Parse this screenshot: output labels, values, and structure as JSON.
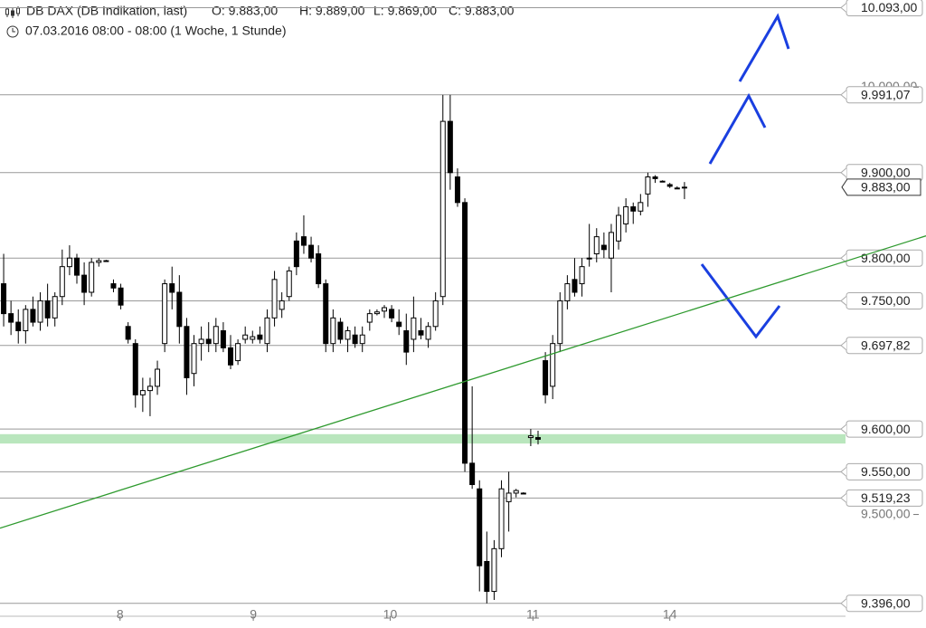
{
  "header": {
    "title": "DB DAX (DB Indikation, last)",
    "open": "O: 9.883,00",
    "high": "H: 9.889,00",
    "low": "L: 9.869,00",
    "close": "C: 9.883,00",
    "period": "07.03.2016 08:00 - 08:00 (1 Woche, 1 Stunde)"
  },
  "chart_data": {
    "type": "candlestick",
    "x": [
      0,
      1,
      2,
      3,
      4,
      5,
      6,
      7,
      8,
      9,
      10,
      11,
      12,
      13,
      14,
      15,
      16,
      17,
      18,
      19,
      20,
      21,
      22,
      23,
      24,
      25,
      26,
      27,
      28,
      29,
      30,
      31,
      32,
      33,
      34,
      35,
      36,
      37,
      38,
      39,
      40,
      41,
      42,
      43,
      44,
      45,
      46,
      47,
      48,
      49,
      50,
      51,
      52,
      53,
      54,
      55,
      56,
      57,
      58,
      59,
      60,
      61,
      62,
      63,
      64,
      65,
      66,
      67,
      68,
      69,
      70,
      71,
      72,
      73,
      74,
      75,
      76,
      77,
      78,
      79,
      80,
      81,
      82,
      83,
      84,
      85,
      86,
      87,
      88,
      89,
      90,
      91,
      92,
      93
    ],
    "open": [
      9770,
      9735,
      9725,
      9715,
      9740,
      9725,
      9750,
      9730,
      9755,
      9790,
      9800,
      9780,
      9760,
      9795,
      9797,
      9770,
      9765,
      9720,
      9700,
      9640,
      9645,
      9650,
      9700,
      9770,
      9760,
      9720,
      9665,
      9700,
      9705,
      9700,
      9715,
      9695,
      9680,
      9705,
      9705,
      9710,
      9700,
      9730,
      9740,
      9755,
      9820,
      9825,
      9815,
      9805,
      9770,
      9700,
      9725,
      9705,
      9710,
      9700,
      9725,
      9735,
      9738,
      9740,
      9725,
      9715,
      9705,
      9715,
      9705,
      9720,
      9755,
      9960,
      9895,
      9865,
      9560,
      9530,
      9445,
      9410,
      9460,
      9515,
      9525,
      9525,
      9590,
      9590,
      9680,
      9650,
      9700,
      9750,
      9775,
      9770,
      9800,
      9805,
      9815,
      9800,
      9820,
      9840,
      9860,
      9855,
      9875,
      9895,
      9890,
      9886,
      9882,
      9883
    ],
    "high": [
      9805,
      9750,
      9740,
      9745,
      9755,
      9760,
      9770,
      9760,
      9810,
      9815,
      9805,
      9795,
      9800,
      9800,
      9798,
      9775,
      9770,
      9725,
      9705,
      9660,
      9660,
      9680,
      9775,
      9790,
      9780,
      9730,
      9710,
      9720,
      9725,
      9730,
      9725,
      9710,
      9705,
      9720,
      9715,
      9720,
      9740,
      9785,
      9760,
      9790,
      9830,
      9850,
      9825,
      9815,
      9775,
      9740,
      9730,
      9720,
      9720,
      9720,
      9740,
      9740,
      9745,
      9745,
      9740,
      9735,
      9755,
      9730,
      9725,
      9760,
      9991,
      9991,
      9905,
      9870,
      9650,
      9540,
      9480,
      9470,
      9540,
      9550,
      9530,
      9526,
      9600,
      9598,
      9690,
      9710,
      9760,
      9780,
      9800,
      9800,
      9840,
      9835,
      9830,
      9840,
      9860,
      9870,
      9865,
      9875,
      9900,
      9897,
      9891,
      9888,
      9884,
      9889
    ],
    "low": [
      9720,
      9710,
      9700,
      9700,
      9720,
      9715,
      9720,
      9720,
      9745,
      9780,
      9770,
      9745,
      9755,
      9790,
      9796,
      9760,
      9740,
      9700,
      9625,
      9620,
      9615,
      9640,
      9690,
      9740,
      9700,
      9640,
      9650,
      9680,
      9690,
      9690,
      9690,
      9670,
      9675,
      9700,
      9700,
      9700,
      9690,
      9720,
      9730,
      9750,
      9780,
      9805,
      9795,
      9765,
      9690,
      9690,
      9700,
      9690,
      9695,
      9690,
      9715,
      9733,
      9730,
      9725,
      9710,
      9675,
      9690,
      9705,
      9695,
      9715,
      9745,
      9880,
      9860,
      9550,
      9530,
      9410,
      9396,
      9400,
      9450,
      9480,
      9520,
      9524,
      9580,
      9582,
      9630,
      9635,
      9690,
      9740,
      9755,
      9755,
      9790,
      9795,
      9800,
      9760,
      9810,
      9830,
      9840,
      9850,
      9860,
      9888,
      9889,
      9882,
      9881,
      9869
    ],
    "close": [
      9735,
      9725,
      9715,
      9740,
      9725,
      9750,
      9730,
      9755,
      9790,
      9800,
      9780,
      9760,
      9795,
      9797,
      9797,
      9765,
      9745,
      9705,
      9640,
      9645,
      9650,
      9670,
      9770,
      9760,
      9720,
      9660,
      9700,
      9705,
      9700,
      9720,
      9695,
      9675,
      9700,
      9710,
      9708,
      9705,
      9730,
      9775,
      9750,
      9785,
      9790,
      9815,
      9800,
      9770,
      9700,
      9730,
      9705,
      9715,
      9700,
      9710,
      9735,
      9737,
      9742,
      9730,
      9720,
      9690,
      9730,
      9710,
      9720,
      9750,
      9960,
      9900,
      9865,
      9560,
      9535,
      9440,
      9410,
      9460,
      9530,
      9525,
      9528,
      9525,
      9592,
      9588,
      9640,
      9700,
      9750,
      9770,
      9760,
      9790,
      9800,
      9825,
      9810,
      9830,
      9850,
      9860,
      9855,
      9865,
      9895,
      9893,
      9890,
      9884,
      9882,
      9883
    ],
    "xlim": [
      -0.5,
      115
    ],
    "ylim": [
      9382,
      10102
    ],
    "xticks": [
      {
        "value": 15.9,
        "label": "8"
      },
      {
        "value": 34.1,
        "label": "9"
      },
      {
        "value": 52.8,
        "label": "10"
      },
      {
        "value": 72.3,
        "label": "11"
      },
      {
        "value": 91.0,
        "label": "14"
      }
    ],
    "yticks": [
      {
        "value": 10000,
        "label": "10.000,00"
      },
      {
        "value": 9500,
        "label": "9.500,00"
      }
    ],
    "levels": [
      {
        "value": 10093,
        "label": "10.093,00"
      },
      {
        "value": 9991.07,
        "label": "9.991,07"
      },
      {
        "value": 9900,
        "label": "9.900,00"
      },
      {
        "value": 9800,
        "label": "9.800,00"
      },
      {
        "value": 9750,
        "label": "9.750,00"
      },
      {
        "value": 9697.82,
        "label": "9.697,82"
      },
      {
        "value": 9600,
        "label": "9.600,00"
      },
      {
        "value": 9550,
        "label": "9.550,00"
      },
      {
        "value": 9519.23,
        "label": "9.519,23"
      },
      {
        "value": 9396,
        "label": "9.396,00"
      }
    ],
    "last": {
      "value": 9883,
      "label": "9.883,00"
    },
    "band": [
      9583,
      9594
    ],
    "band_color": "#b9e6bd",
    "trendline": {
      "x": [
        -0.5,
        114.9
      ],
      "y": [
        9484,
        9796
      ],
      "color": "#2e9a2e"
    },
    "up_color": "#ffffff",
    "down_color": "#000000"
  }
}
